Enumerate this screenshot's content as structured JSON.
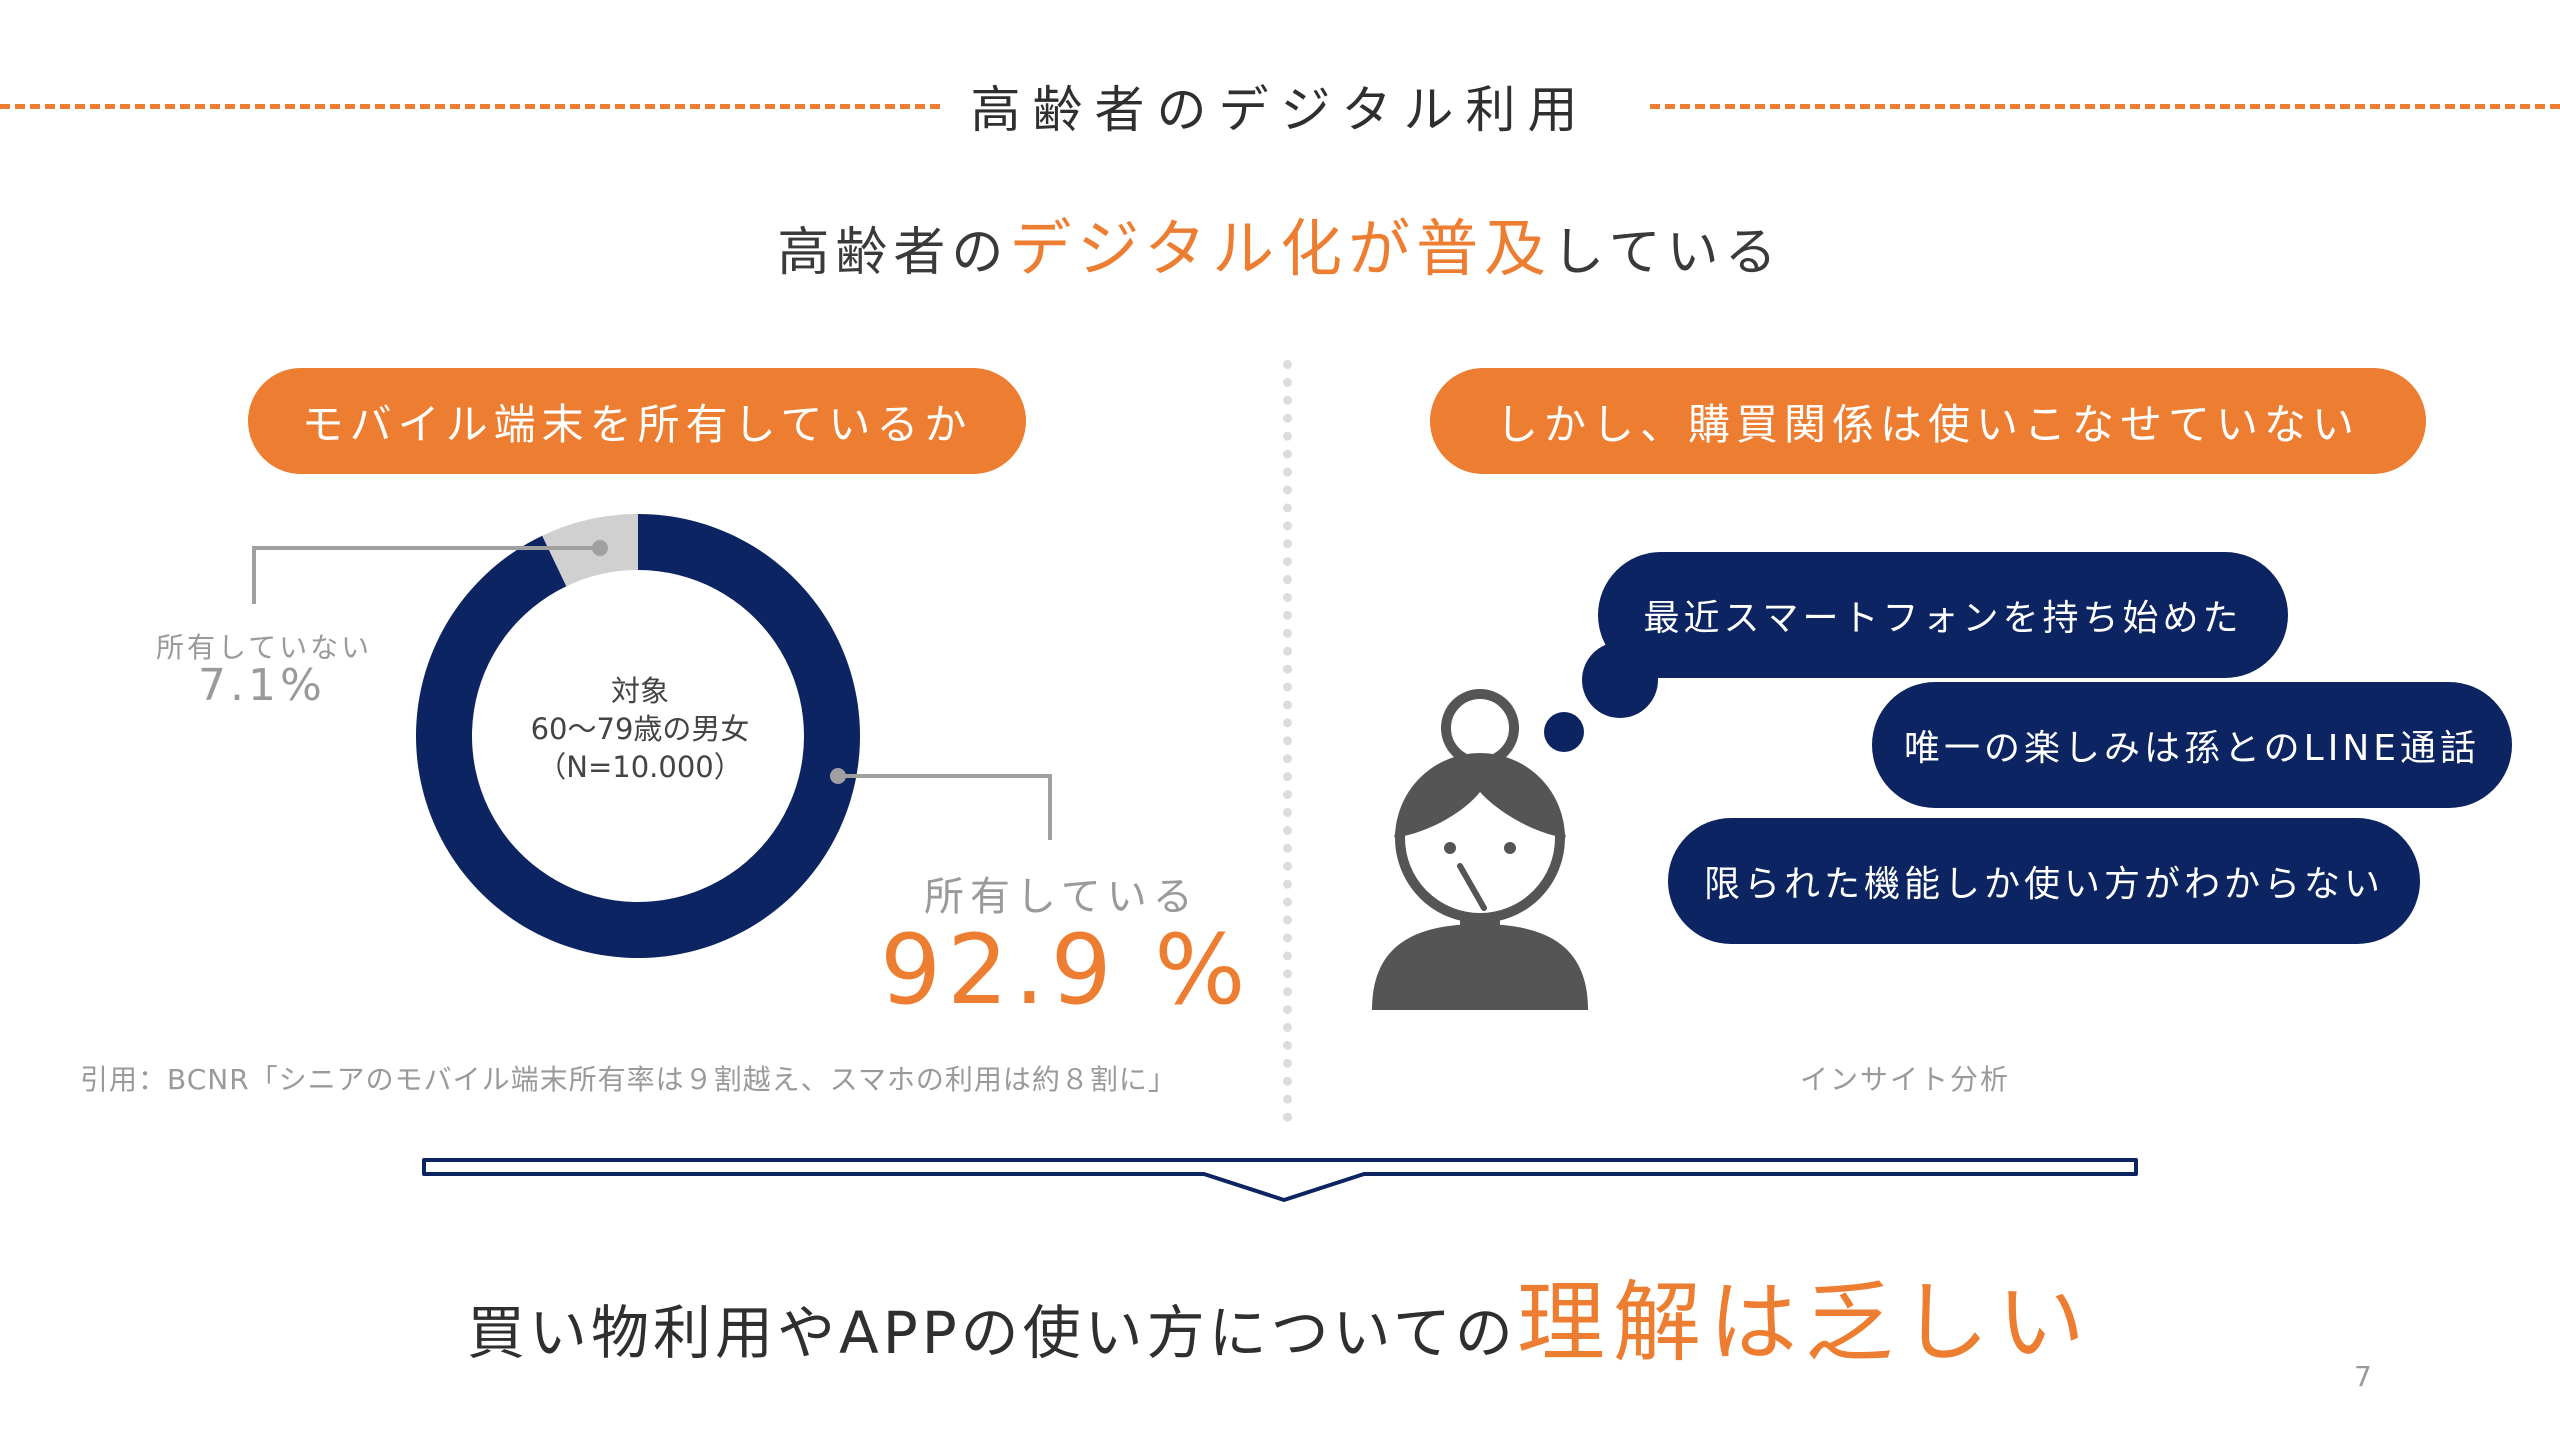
{
  "header": {
    "title": "高齢者のデジタル利用",
    "subtitle_pre": "高齢者の",
    "subtitle_highlight": "デジタル化が普及",
    "subtitle_post": "している"
  },
  "left": {
    "pill": "モバイル端末を所有しているか",
    "center_lines": [
      "対象",
      "60〜79歳の男女",
      "（N=10.000）"
    ],
    "not_owning_label": "所有していない",
    "not_owning_value": "7.1%",
    "owning_label": "所有している",
    "owning_value": "92.9 %",
    "citation": "引用：BCNR「シニアのモバイル端末所有率は９割越え、スマホの利用は約８割に」"
  },
  "right": {
    "pill": "しかし、購買関係は使いこなせていない",
    "bubbles": [
      "最近スマートフォンを持ち始めた",
      "唯一の楽しみは孫とのLINE通話",
      "限られた機能しか使い方がわからない"
    ],
    "caption": "インサイト分析"
  },
  "conclusion": {
    "pre": "買い物利用やAPPの使い方についての",
    "highlight": "理解は乏しい"
  },
  "page_number": "7",
  "colors": {
    "accent": "#ED7D31",
    "navy": "#0C2461",
    "gray": "#D0D0D0"
  },
  "chart_data": {
    "type": "pie",
    "categories": [
      "所有している",
      "所有していない"
    ],
    "values": [
      92.9,
      7.1
    ],
    "colors": [
      "#0C2461",
      "#D0D0D0"
    ],
    "title": "モバイル端末を所有しているか"
  }
}
